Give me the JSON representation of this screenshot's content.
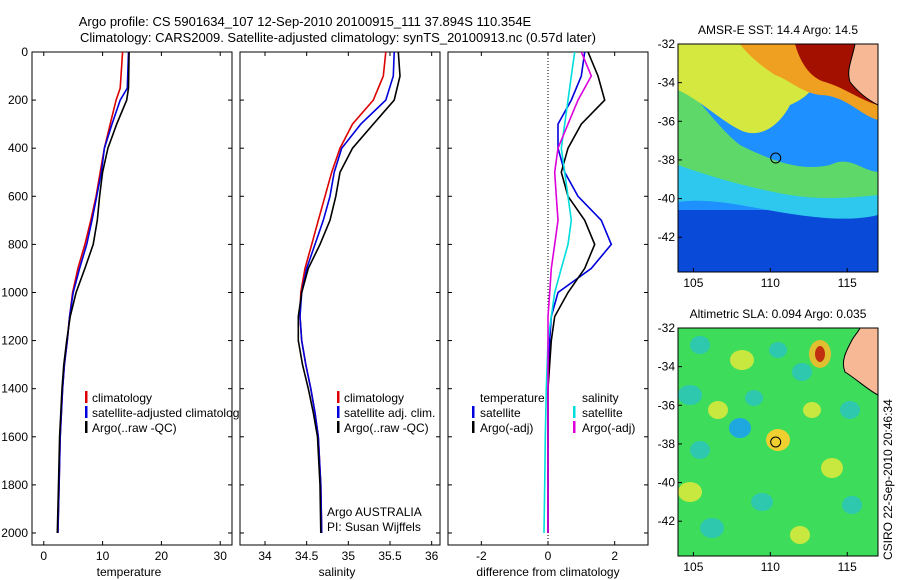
{
  "header": {
    "line1": "Argo profile: CS 5901634_107 12-Sep-2010 20100915_111 37.894S 110.354E",
    "line2": "Climatology: CARS2009. Satellite-adjusted climatology: synTS_20100913.nc (0.57d later)"
  },
  "side_text": "CSIRO 22-Sep-2010 20:46:34",
  "colors": {
    "red": "#dd0000",
    "blue": "#0000dd",
    "black": "#000000",
    "cyan": "#00dddd",
    "magenta": "#dd00dd"
  },
  "chart_data": [
    {
      "type": "line",
      "xlabel": "temperature",
      "xlim": [
        -2,
        32
      ],
      "xticks": [
        0,
        10,
        20,
        30
      ],
      "ylim": [
        0,
        2050
      ],
      "yticks": [
        0,
        200,
        400,
        600,
        800,
        1000,
        1200,
        1400,
        1600,
        1800,
        2000
      ],
      "legend": [
        "climatology",
        "satellite-adjusted climatology",
        "Argo(..raw -QC)"
      ],
      "series": [
        {
          "color": "red",
          "depth": [
            0,
            150,
            200,
            300,
            400,
            500,
            600,
            700,
            800,
            900,
            1000,
            1100,
            1200,
            1300,
            1400,
            1500,
            1600,
            1800,
            2000
          ],
          "values": [
            13.4,
            13.0,
            12.3,
            11.3,
            10.3,
            9.6,
            8.9,
            8.0,
            7.0,
            5.8,
            4.9,
            4.4,
            4.0,
            3.5,
            3.2,
            3.0,
            2.8,
            2.6,
            2.4
          ]
        },
        {
          "color": "blue",
          "depth": [
            0,
            150,
            200,
            300,
            400,
            500,
            600,
            700,
            800,
            900,
            1000,
            1100,
            1200,
            1300,
            1400,
            1500,
            1600,
            1800,
            2000
          ],
          "values": [
            14.4,
            14.2,
            13.0,
            11.6,
            10.3,
            9.8,
            9.0,
            8.2,
            7.3,
            6.1,
            5.0,
            4.4,
            4.0,
            3.5,
            3.2,
            3.0,
            2.8,
            2.6,
            2.4
          ]
        },
        {
          "color": "black",
          "depth": [
            0,
            150,
            200,
            300,
            400,
            500,
            600,
            700,
            800,
            900,
            1000,
            1100,
            1200,
            1300,
            1400,
            1500,
            1600,
            1800,
            2000
          ],
          "values": [
            14.5,
            14.4,
            14.1,
            12.4,
            10.9,
            10.0,
            9.5,
            9.1,
            8.4,
            7.0,
            5.5,
            4.5,
            3.9,
            3.4,
            3.1,
            2.9,
            2.7,
            2.5,
            2.3
          ]
        }
      ]
    },
    {
      "type": "line",
      "xlabel": "salinity",
      "xlim": [
        33.7,
        36.1
      ],
      "xticks": [
        34,
        34.5,
        35,
        35.5,
        36
      ],
      "ylim": [
        0,
        2050
      ],
      "legend": [
        "climatology",
        "satellite adj. clim.",
        "Argo(..raw -QC)"
      ],
      "annotation": [
        "Argo AUSTRALIA",
        "PI: Susan Wijffels"
      ],
      "series": [
        {
          "color": "red",
          "depth": [
            0,
            100,
            200,
            300,
            400,
            500,
            600,
            700,
            800,
            900,
            1000,
            1100,
            1200,
            1300,
            1400,
            1500,
            1600,
            1800,
            2000
          ],
          "values": [
            35.45,
            35.42,
            35.3,
            35.05,
            34.9,
            34.8,
            34.72,
            34.64,
            34.56,
            34.48,
            34.43,
            34.42,
            34.44,
            34.49,
            34.55,
            34.6,
            34.64,
            34.67,
            34.68
          ]
        },
        {
          "color": "blue",
          "depth": [
            0,
            100,
            200,
            300,
            400,
            500,
            600,
            700,
            800,
            900,
            1000,
            1100,
            1200,
            1300,
            1400,
            1500,
            1600,
            1800,
            2000
          ],
          "values": [
            35.55,
            35.54,
            35.45,
            35.15,
            34.92,
            34.83,
            34.78,
            34.7,
            34.6,
            34.5,
            34.44,
            34.42,
            34.44,
            34.49,
            34.55,
            34.6,
            34.64,
            34.67,
            34.68
          ]
        },
        {
          "color": "black",
          "depth": [
            0,
            100,
            200,
            300,
            400,
            500,
            600,
            700,
            800,
            900,
            1000,
            1100,
            1200,
            1300,
            1400,
            1500,
            1600,
            1800,
            2000
          ],
          "values": [
            35.6,
            35.62,
            35.55,
            35.3,
            35.05,
            34.9,
            34.85,
            34.78,
            34.66,
            34.52,
            34.44,
            34.4,
            34.4,
            34.45,
            34.52,
            34.58,
            34.63,
            34.66,
            34.67
          ]
        }
      ]
    },
    {
      "type": "line",
      "xlabel": "difference from climatology",
      "xlim": [
        -3,
        3
      ],
      "xticks": [
        -2,
        0,
        2
      ],
      "ylim": [
        0,
        2050
      ],
      "legend_groups": [
        {
          "title": "temperature",
          "entries": [
            "satellite",
            "Argo(-adj)"
          ]
        },
        {
          "title": "salinity",
          "entries": [
            "satellite",
            "Argo(-adj)"
          ]
        }
      ],
      "series": [
        {
          "color": "blue",
          "depth": [
            0,
            100,
            200,
            300,
            400,
            500,
            600,
            700,
            800,
            900,
            1000,
            1100,
            1200,
            1400,
            1600,
            1800,
            2000
          ],
          "values": [
            1.1,
            1.0,
            0.7,
            0.3,
            0.3,
            0.5,
            0.9,
            1.6,
            1.9,
            1.3,
            0.3,
            0.1,
            0.05,
            0.0,
            0.0,
            0.0,
            0.0
          ]
        },
        {
          "color": "black",
          "depth": [
            0,
            100,
            200,
            300,
            400,
            500,
            600,
            700,
            800,
            900,
            1000,
            1100,
            1200,
            1400,
            1600,
            1800,
            2000
          ],
          "values": [
            1.2,
            1.5,
            1.7,
            1.0,
            0.6,
            0.4,
            0.6,
            1.1,
            1.4,
            1.1,
            0.6,
            0.2,
            0.1,
            0.0,
            0.0,
            0.0,
            0.0
          ]
        },
        {
          "color": "cyan",
          "depth": [
            0,
            100,
            200,
            300,
            400,
            500,
            600,
            700,
            800,
            900,
            1000,
            1100,
            1200,
            1400,
            1600,
            1800,
            2000
          ],
          "values": [
            0.8,
            0.7,
            0.6,
            0.5,
            0.4,
            0.5,
            0.6,
            0.7,
            0.6,
            0.4,
            0.2,
            0.1,
            0.0,
            -0.05,
            -0.08,
            -0.1,
            -0.12
          ]
        },
        {
          "color": "magenta",
          "depth": [
            0,
            100,
            200,
            300,
            400,
            500,
            600,
            700,
            800,
            900,
            1000,
            1100,
            1200,
            1400,
            1600,
            1800,
            2000
          ],
          "values": [
            1.0,
            1.3,
            0.9,
            0.6,
            0.3,
            0.2,
            0.25,
            0.3,
            0.2,
            0.1,
            0.05,
            0.0,
            0.0,
            0.0,
            0.0,
            0.0,
            0.0
          ]
        }
      ]
    },
    {
      "type": "heatmap",
      "title": "AMSR-E SST: 14.4 Argo: 14.5",
      "xlim": [
        104,
        117
      ],
      "ylim": [
        -43.8,
        -32
      ],
      "xticks": [
        105,
        110,
        115
      ],
      "yticks": [
        -32,
        -34,
        -36,
        -38,
        -40,
        -42
      ],
      "marker": {
        "lon": 110.35,
        "lat": -37.9
      }
    },
    {
      "type": "heatmap",
      "title": "Altimetric SLA: 0.094 Argo: 0.035",
      "xlim": [
        104,
        117
      ],
      "ylim": [
        -43.8,
        -32
      ],
      "xticks": [
        105,
        110,
        115
      ],
      "yticks": [
        -32,
        -34,
        -36,
        -38,
        -40,
        -42
      ],
      "marker": {
        "lon": 110.35,
        "lat": -37.9
      }
    }
  ]
}
